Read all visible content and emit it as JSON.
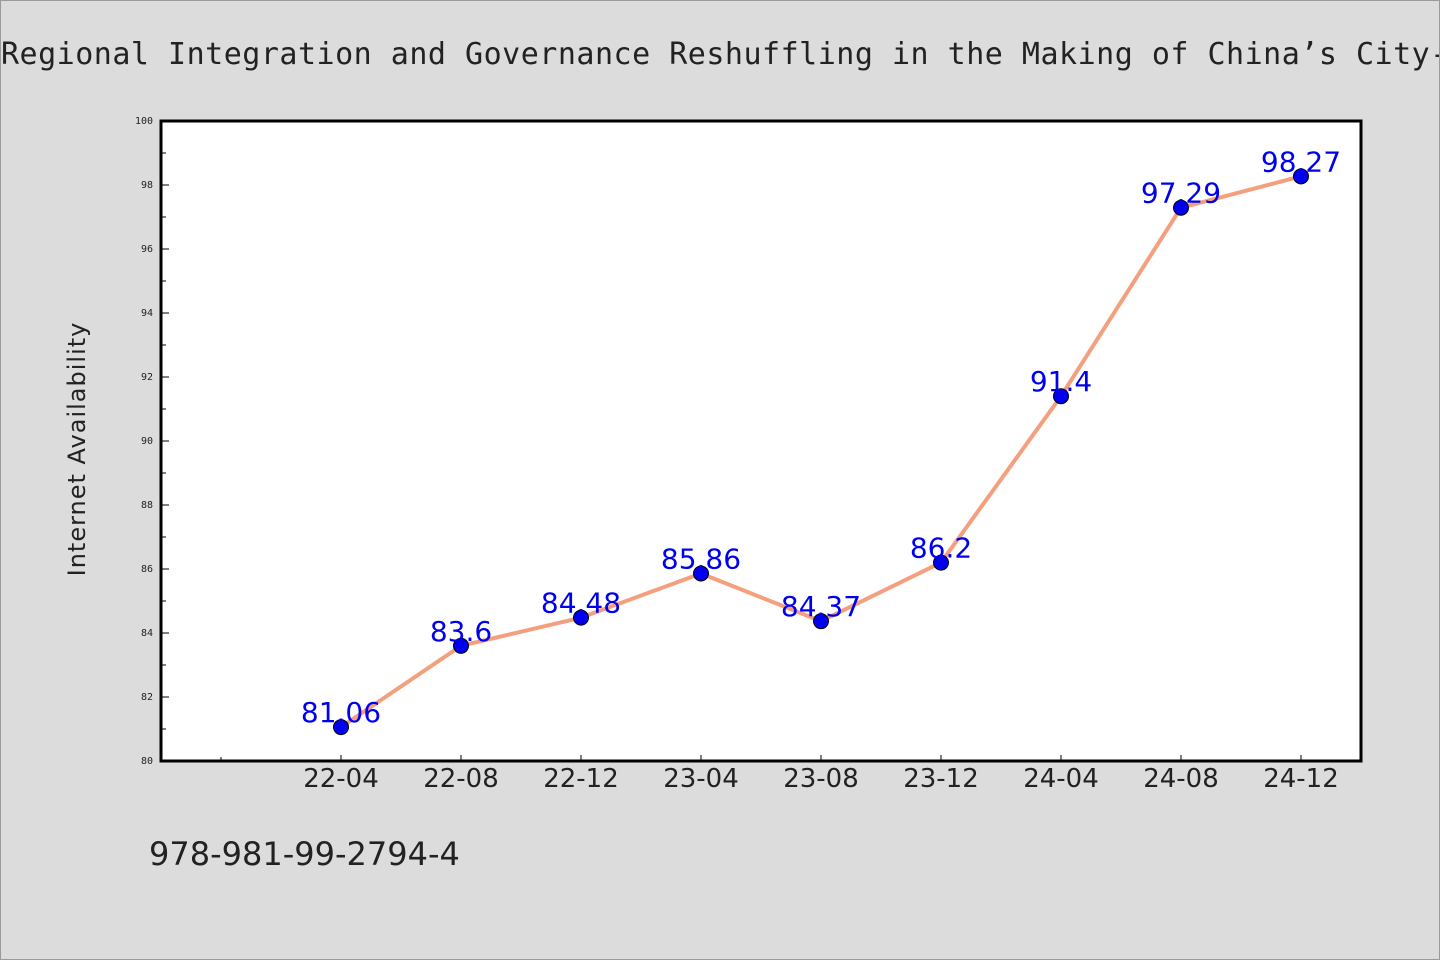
{
  "page": {
    "background": "#dcdcdc",
    "footer_code": "978-981-99-2794-4"
  },
  "chart_data": {
    "type": "line",
    "title": "Regional Integration and Governance Reshuffling in the Making of China’s City-Re",
    "xlabel": "",
    "ylabel": "Internet Availability",
    "categories": [
      "22-04",
      "22-08",
      "22-12",
      "23-04",
      "23-08",
      "23-12",
      "24-04",
      "24-08",
      "24-12"
    ],
    "series": [
      {
        "values": [
          81.06,
          83.6,
          84.48,
          85.86,
          84.37,
          86.2,
          91.4,
          97.29,
          98.27
        ],
        "data_labels": [
          "81.06",
          "83.6",
          "84.48",
          "85.86",
          "84.37",
          "86.2",
          "91.4",
          "97.29",
          "98.27"
        ],
        "line_color": "#f4a07e",
        "marker_color": "#0000ee",
        "label_color": "#0000ee"
      }
    ],
    "ylim": [
      80,
      100
    ],
    "yticks": [
      "80",
      "82",
      "84",
      "86",
      "88",
      "90",
      "92",
      "94",
      "96",
      "98",
      "100"
    ],
    "grid": false,
    "legend": "none"
  }
}
